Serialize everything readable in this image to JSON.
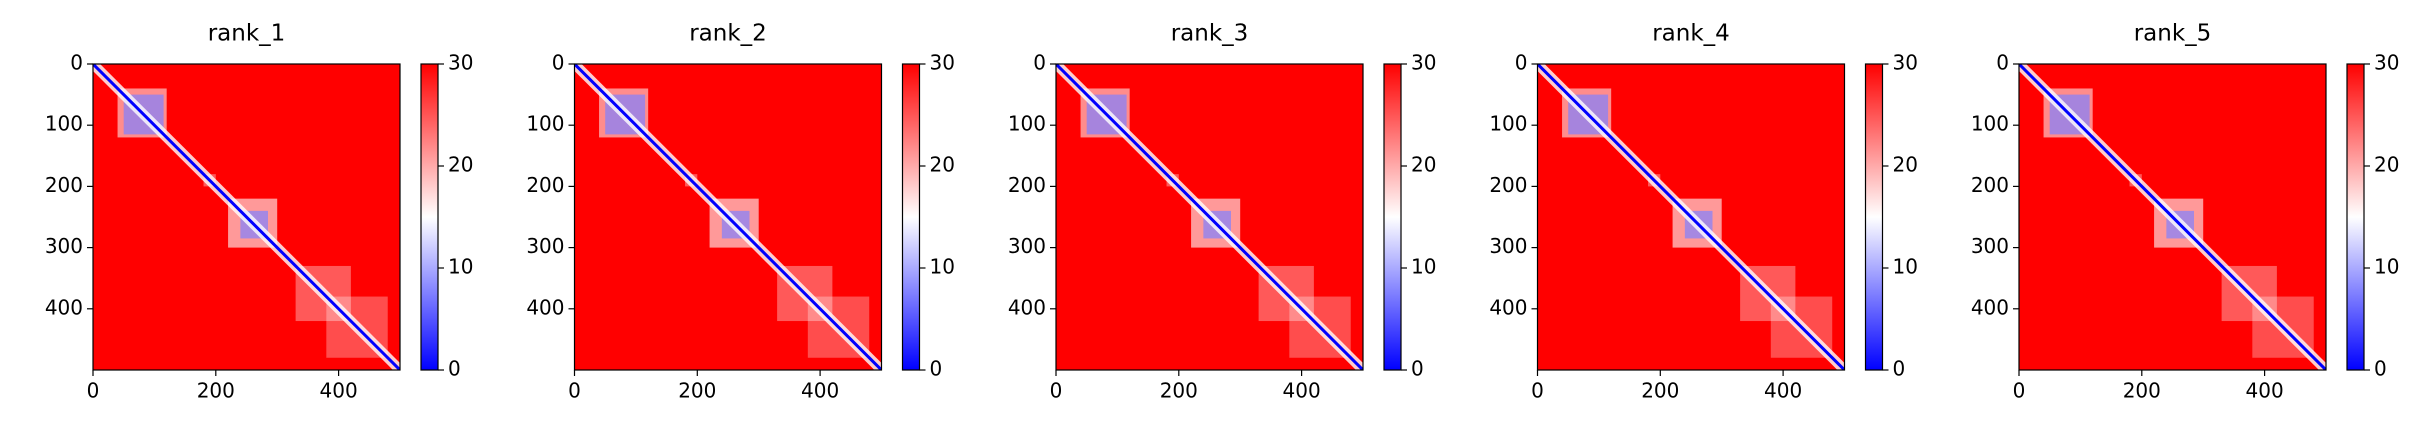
{
  "chart_data": [
    {
      "type": "heatmap",
      "title": "rank_1",
      "xlim": [
        0,
        500
      ],
      "ylim": [
        500,
        0
      ],
      "xticks": [
        0,
        200,
        400
      ],
      "yticks": [
        0,
        100,
        200,
        300,
        400
      ],
      "clim": [
        0,
        30
      ],
      "cticks": [
        0,
        10,
        20,
        30
      ],
      "colors": [
        "#0000ff",
        "#ffffff",
        "#ff0000"
      ]
    },
    {
      "type": "heatmap",
      "title": "rank_2",
      "xlim": [
        0,
        500
      ],
      "ylim": [
        500,
        0
      ],
      "xticks": [
        0,
        200,
        400
      ],
      "yticks": [
        0,
        100,
        200,
        300,
        400
      ],
      "clim": [
        0,
        30
      ],
      "cticks": [
        0,
        10,
        20,
        30
      ],
      "colors": [
        "#0000ff",
        "#ffffff",
        "#ff0000"
      ]
    },
    {
      "type": "heatmap",
      "title": "rank_3",
      "xlim": [
        0,
        500
      ],
      "ylim": [
        500,
        0
      ],
      "xticks": [
        0,
        200,
        400
      ],
      "yticks": [
        0,
        100,
        200,
        300,
        400
      ],
      "clim": [
        0,
        30
      ],
      "cticks": [
        0,
        10,
        20,
        30
      ],
      "colors": [
        "#0000ff",
        "#ffffff",
        "#ff0000"
      ]
    },
    {
      "type": "heatmap",
      "title": "rank_4",
      "xlim": [
        0,
        500
      ],
      "ylim": [
        500,
        0
      ],
      "xticks": [
        0,
        200,
        400
      ],
      "yticks": [
        0,
        100,
        200,
        300,
        400
      ],
      "clim": [
        0,
        30
      ],
      "cticks": [
        0,
        10,
        20,
        30
      ],
      "colors": [
        "#0000ff",
        "#ffffff",
        "#ff0000"
      ]
    },
    {
      "type": "heatmap",
      "title": "rank_5",
      "xlim": [
        0,
        500
      ],
      "ylim": [
        500,
        0
      ],
      "xticks": [
        0,
        200,
        400
      ],
      "yticks": [
        0,
        100,
        200,
        300,
        400
      ],
      "clim": [
        0,
        30
      ],
      "cticks": [
        0,
        10,
        20,
        30
      ],
      "colors": [
        "#0000ff",
        "#ffffff",
        "#ff0000"
      ]
    }
  ]
}
